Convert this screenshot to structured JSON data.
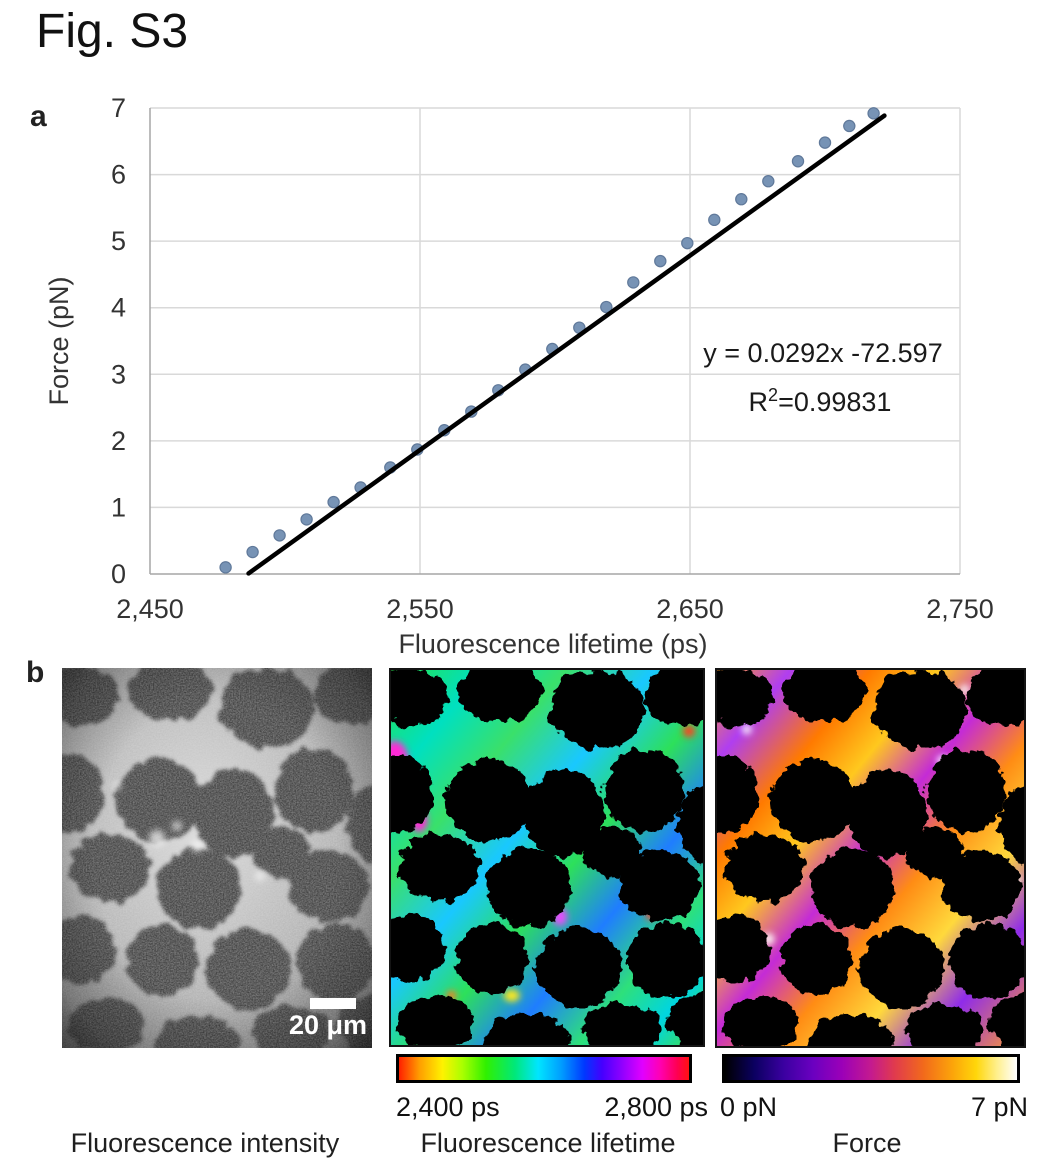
{
  "figure": {
    "title": "Fig. S3",
    "panel_a_label": "a",
    "panel_b_label": "b"
  },
  "chart_data": {
    "type": "scatter",
    "title": "",
    "xlabel": "Fluorescence lifetime (ps)",
    "ylabel": "Force (pN)",
    "xlim": [
      2450,
      2750
    ],
    "ylim": [
      0,
      7
    ],
    "grid": true,
    "legend_position": "none",
    "marker_color": "#7793b5",
    "marker_edge_color": "#60799a",
    "trendline_color": "#000000",
    "x_ticks": [
      {
        "value": 2450,
        "label": "2,450"
      },
      {
        "value": 2550,
        "label": "2,550"
      },
      {
        "value": 2650,
        "label": "2,650"
      },
      {
        "value": 2750,
        "label": "2,750"
      }
    ],
    "y_ticks": [
      {
        "value": 0,
        "label": "0"
      },
      {
        "value": 1,
        "label": "1"
      },
      {
        "value": 2,
        "label": "2"
      },
      {
        "value": 3,
        "label": "3"
      },
      {
        "value": 4,
        "label": "4"
      },
      {
        "value": 5,
        "label": "5"
      },
      {
        "value": 6,
        "label": "6"
      },
      {
        "value": 7,
        "label": "7"
      }
    ],
    "points": [
      [
        2478,
        0.1
      ],
      [
        2488,
        0.33
      ],
      [
        2498,
        0.58
      ],
      [
        2508,
        0.82
      ],
      [
        2518,
        1.08
      ],
      [
        2528,
        1.3
      ],
      [
        2539,
        1.6
      ],
      [
        2549,
        1.87
      ],
      [
        2559,
        2.16
      ],
      [
        2569,
        2.44
      ],
      [
        2579,
        2.76
      ],
      [
        2589,
        3.07
      ],
      [
        2599,
        3.38
      ],
      [
        2609,
        3.7
      ],
      [
        2619,
        4.01
      ],
      [
        2629,
        4.38
      ],
      [
        2639,
        4.7
      ],
      [
        2649,
        4.97
      ],
      [
        2659,
        5.32
      ],
      [
        2669,
        5.63
      ],
      [
        2679,
        5.9
      ],
      [
        2690,
        6.2
      ],
      [
        2700,
        6.48
      ],
      [
        2709,
        6.73
      ],
      [
        2718,
        6.92
      ]
    ],
    "fit": {
      "equation": "y = 0.0292x -72.597",
      "slope": 0.0292,
      "intercept": -72.597,
      "r2": 0.99831,
      "r2_base": "R",
      "r2_sup": "2",
      "r2_value": "=0.99831",
      "draw_from": 2486.5,
      "draw_to": 2722
    }
  },
  "panel_b": {
    "images": [
      {
        "caption": "Fluorescence intensity",
        "scalebar_label": "20 μm"
      },
      {
        "caption": "Fluorescence lifetime"
      },
      {
        "caption": "Force"
      }
    ],
    "colorbars": [
      {
        "id": "cbar-lifetime",
        "min_label": "2,400 ps",
        "max_label": "2,800 ps",
        "stops": [
          [
            "#ff2000",
            0
          ],
          [
            "#ff9d00",
            7
          ],
          [
            "#fff200",
            15
          ],
          [
            "#a8ff00",
            22
          ],
          [
            "#30f000",
            30
          ],
          [
            "#00e87a",
            40
          ],
          [
            "#00e5ff",
            48
          ],
          [
            "#009dff",
            56
          ],
          [
            "#0037ff",
            64
          ],
          [
            "#4400ff",
            70
          ],
          [
            "#9100ff",
            77
          ],
          [
            "#e100ff",
            84
          ],
          [
            "#ff00b3",
            90
          ],
          [
            "#ff0051",
            96
          ],
          [
            "#ff1111",
            100
          ]
        ]
      },
      {
        "id": "cbar-force",
        "min_label": "0 pN",
        "max_label": "7 pN",
        "stops": [
          [
            "#000000",
            0
          ],
          [
            "#0b0060",
            10
          ],
          [
            "#3a00a0",
            20
          ],
          [
            "#6a00c0",
            30
          ],
          [
            "#9b00b8",
            40
          ],
          [
            "#c41a8f",
            50
          ],
          [
            "#e03a4e",
            58
          ],
          [
            "#f26a1b",
            68
          ],
          [
            "#fca50a",
            78
          ],
          [
            "#ffd60a",
            86
          ],
          [
            "#ffef8a",
            93
          ],
          [
            "#ffffff",
            100
          ]
        ]
      }
    ]
  }
}
